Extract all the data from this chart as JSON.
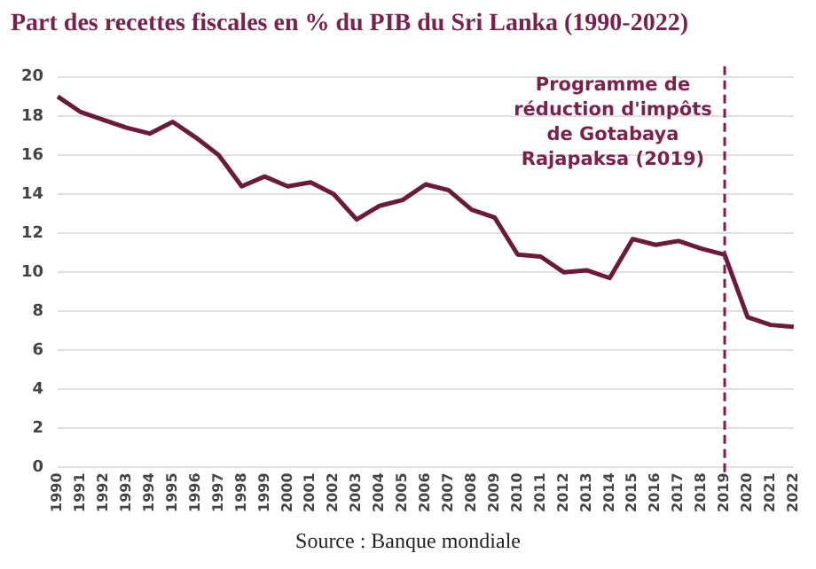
{
  "chart_data": {
    "type": "line",
    "title": "Part des recettes fiscales en % du PIB du Sri Lanka (1990-2022)",
    "categories": [
      "1990",
      "1991",
      "1992",
      "1993",
      "1994",
      "1995",
      "1996",
      "1997",
      "1998",
      "1999",
      "2000",
      "2001",
      "2002",
      "2003",
      "2004",
      "2005",
      "2006",
      "2007",
      "2008",
      "2009",
      "2010",
      "2011",
      "2012",
      "2013",
      "2014",
      "2015",
      "2016",
      "2017",
      "2018",
      "2019",
      "2020",
      "2021",
      "2022"
    ],
    "series": [
      {
        "color": "#6b1a3a",
        "values": [
          19.0,
          18.2,
          17.8,
          17.4,
          17.1,
          17.7,
          16.9,
          16.0,
          14.4,
          14.9,
          14.4,
          14.6,
          14.0,
          12.7,
          13.4,
          13.7,
          14.5,
          14.2,
          13.2,
          12.8,
          10.9,
          10.8,
          10.0,
          10.1,
          9.7,
          11.7,
          11.4,
          11.6,
          11.2,
          10.9,
          7.7,
          7.3,
          7.2
        ]
      }
    ],
    "ylim": [
      0,
      20
    ],
    "yticks": [
      0,
      2,
      4,
      6,
      8,
      10,
      12,
      14,
      16,
      18,
      20
    ],
    "grid": "y",
    "legend": false,
    "marker": "none",
    "line_style": "solid",
    "ref_lines": [
      {
        "axis": "x",
        "value": "2019",
        "label": "Programme de réduction d'impôts de Gotabaya Rajapaksa (2019)",
        "color": "#7b1f4b",
        "line_style": "dashed"
      }
    ],
    "annotations": [
      "Source : Banque mondiale"
    ]
  }
}
